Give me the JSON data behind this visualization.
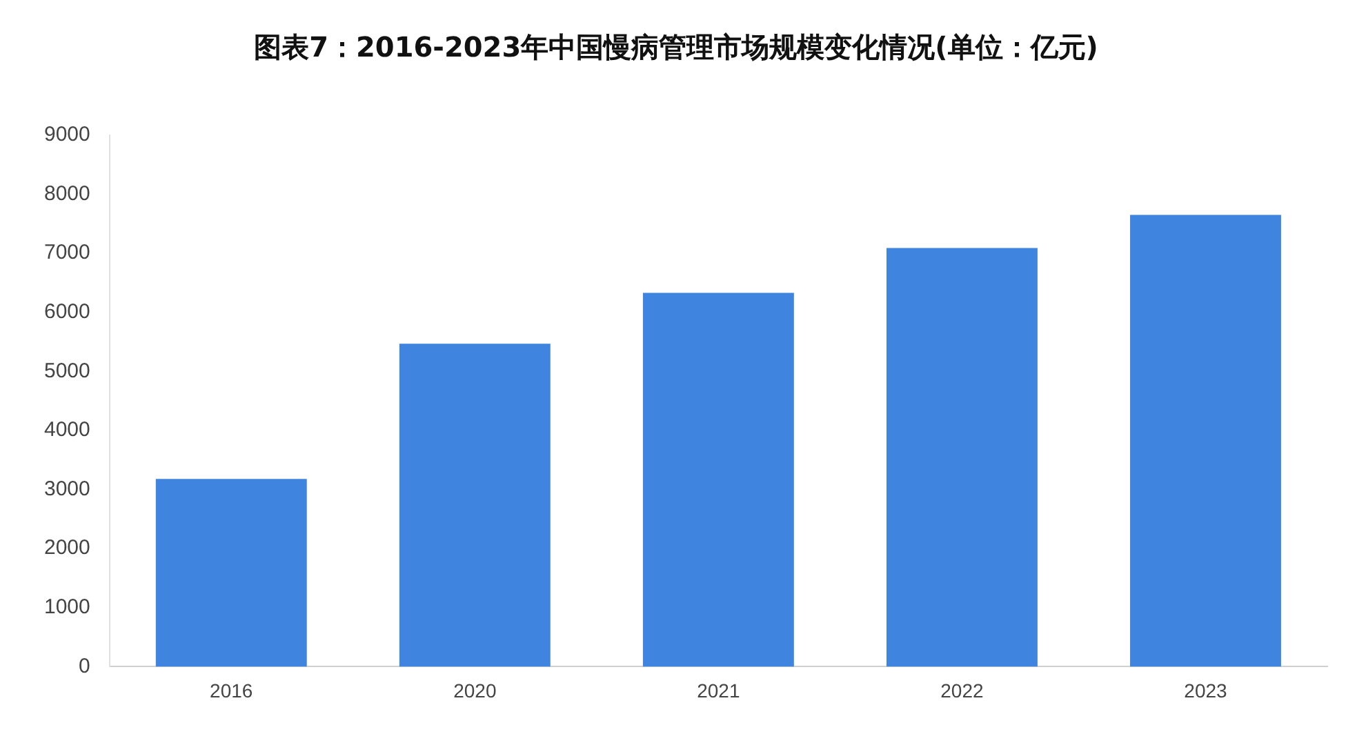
{
  "chart_data": {
    "type": "bar",
    "title": "图表7：2016-2023年中国慢病管理市场规模变化情况(单位：亿元)",
    "categories": [
      "2016",
      "2020",
      "2021",
      "2022",
      "2023"
    ],
    "values": [
      3180,
      5470,
      6330,
      7090,
      7650
    ],
    "color": "#3f84de",
    "ylim": [
      0,
      9000
    ],
    "yticks": [
      0,
      1000,
      2000,
      3000,
      4000,
      5000,
      6000,
      7000,
      8000,
      9000
    ],
    "grid": false
  }
}
